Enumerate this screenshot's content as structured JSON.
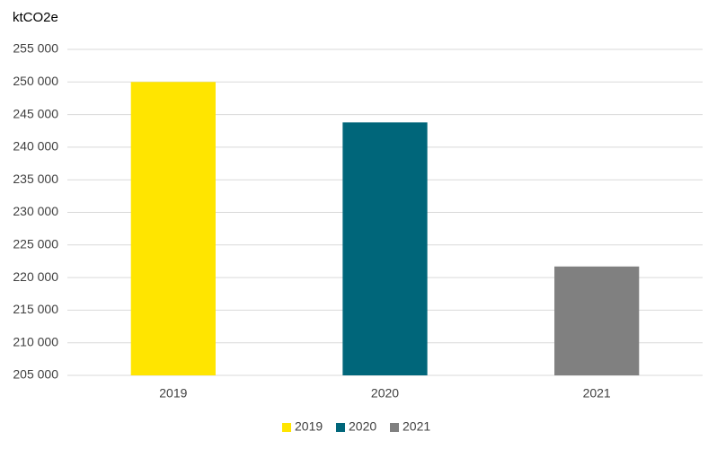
{
  "chart_data": {
    "type": "bar",
    "y_axis_label": "ktCO2e",
    "categories": [
      "2019",
      "2020",
      "2021"
    ],
    "series": [
      {
        "name": "2019",
        "color": "#ffe500",
        "values": [
          250000,
          null,
          null
        ]
      },
      {
        "name": "2020",
        "color": "#00667a",
        "values": [
          null,
          243800,
          null
        ]
      },
      {
        "name": "2021",
        "color": "#808080",
        "values": [
          null,
          null,
          221700
        ]
      }
    ],
    "ylim": [
      205000,
      255000
    ],
    "yticks": [
      {
        "value": 205000,
        "label": "205 000"
      },
      {
        "value": 210000,
        "label": "210 000"
      },
      {
        "value": 215000,
        "label": "215 000"
      },
      {
        "value": 220000,
        "label": "220 000"
      },
      {
        "value": 225000,
        "label": "225 000"
      },
      {
        "value": 230000,
        "label": "230 000"
      },
      {
        "value": 235000,
        "label": "235 000"
      },
      {
        "value": 240000,
        "label": "240 000"
      },
      {
        "value": 245000,
        "label": "245 000"
      },
      {
        "value": 250000,
        "label": "250 000"
      },
      {
        "value": 255000,
        "label": "255 000"
      }
    ],
    "grid": true,
    "legend": "bottom"
  }
}
